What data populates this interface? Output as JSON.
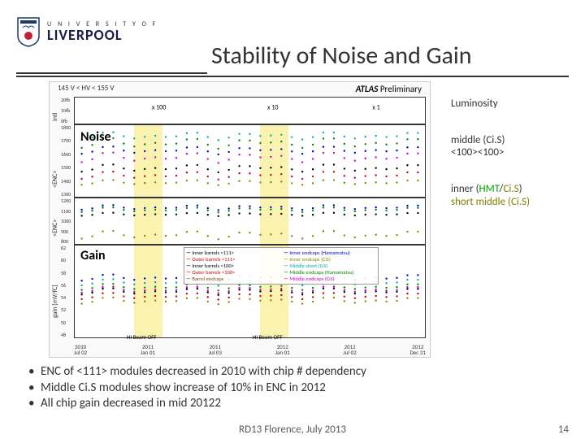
{
  "logo": {
    "univ": "U N I V E R S I T Y  O F",
    "name": "LIVERPOOL"
  },
  "title": "Stability of Noise and Gain",
  "chart": {
    "header": "145 V < HV < 155 V",
    "atlas": "ATLAS",
    "prelim": " Preliminary",
    "noise_label": "Noise",
    "gain_label": "Gain",
    "ylabel1": "intl",
    "ylabel2": "<ENC>",
    "ylabel3": "<ENC>",
    "ylabel4": "gain [mV/fC]",
    "mult_labels": [
      "x 100",
      "x 10",
      "x 1"
    ],
    "beam_off": "HI  Beam OFF",
    "beam_off2": "HI        Beam OFF",
    "panel1_yticks": [
      "20fb",
      "10fb",
      "0fb"
    ],
    "panel2_yticks": [
      "1800",
      "1700",
      "1600",
      "1500",
      "1400",
      "1300"
    ],
    "panel3_yticks": [
      "1200",
      "1100",
      "1000",
      "900",
      "800"
    ],
    "panel4_yticks": [
      "62",
      "60",
      "58",
      "56",
      "54",
      "52",
      "50",
      "48"
    ],
    "xaxis": [
      {
        "top": "2010",
        "bot": "Jul 02"
      },
      {
        "top": "2011",
        "bot": "Jan 01"
      },
      {
        "top": "2011",
        "bot": "Jul 03"
      },
      {
        "top": "2012",
        "bot": "Jan 01"
      },
      {
        "top": "2012",
        "bot": "Jul 02"
      },
      {
        "top": "2012",
        "bot": "Dec 31"
      }
    ],
    "legend": [
      "Inner barrels <111>",
      "Inner endcaps (Hamamatsu)",
      "Outer barrels <111>",
      "Inner endcaps (CiS)",
      "Inner barrels <100>",
      "Middle short (CiS)",
      "Outer barrels <100>",
      "Middle endcaps (Hamamatsu)",
      "Barrel endcaps",
      "Middle endcaps (CiS)"
    ],
    "highlight_bands": [
      {
        "left_pct": 17,
        "width_pct": 8
      },
      {
        "left_pct": 53,
        "width_pct": 8
      }
    ],
    "series_colors": {
      "black": "#000000",
      "red": "#cc0000",
      "blue": "#0000cc",
      "green": "#008800",
      "magenta": "#cc00cc",
      "cyan": "#00aaaa",
      "olive": "#888800",
      "darkred": "#880000"
    },
    "lumi": {
      "color": "#8b0000",
      "segments": [
        {
          "x1pct": 2,
          "y1pct": 90,
          "x2pct": 18,
          "y2pct": 85
        },
        {
          "x1pct": 28,
          "y1pct": 95,
          "x2pct": 55,
          "y2pct": 45
        },
        {
          "x1pct": 62,
          "y1pct": 95,
          "x2pct": 98,
          "y2pct": 10
        }
      ]
    },
    "panel2_series": [
      {
        "color": "#00aaaa",
        "baseY": 15,
        "wiggle": 3
      },
      {
        "color": "#008800",
        "baseY": 25,
        "wiggle": 4
      },
      {
        "color": "#0000cc",
        "baseY": 35,
        "wiggle": 3
      },
      {
        "color": "#cc00cc",
        "baseY": 45,
        "wiggle": 4
      },
      {
        "color": "#000000",
        "baseY": 60,
        "wiggle": 3
      },
      {
        "color": "#cc0000",
        "baseY": 70,
        "wiggle": 3
      },
      {
        "color": "#888800",
        "baseY": 80,
        "wiggle": 2
      }
    ],
    "panel3_series": [
      {
        "color": "#0000cc",
        "baseY": 20,
        "wiggle": 3
      },
      {
        "color": "#008800",
        "baseY": 25,
        "wiggle": 3
      },
      {
        "color": "#000000",
        "baseY": 35,
        "wiggle": 2
      },
      {
        "color": "#888800",
        "baseY": 80,
        "wiggle": 5
      }
    ],
    "panel4_series": [
      {
        "color": "#0000cc",
        "baseY": 35,
        "wiggle": 2
      },
      {
        "color": "#00aaaa",
        "baseY": 40,
        "wiggle": 2
      },
      {
        "color": "#008800",
        "baseY": 45,
        "wiggle": 2
      },
      {
        "color": "#cc00cc",
        "baseY": 48,
        "wiggle": 2
      },
      {
        "color": "#000000",
        "baseY": 50,
        "wiggle": 2
      },
      {
        "color": "#cc0000",
        "baseY": 55,
        "wiggle": 2
      },
      {
        "color": "#888800",
        "baseY": 60,
        "wiggle": 2
      }
    ]
  },
  "annotations": {
    "luminosity": "Luminosity",
    "middle1": "middle (Ci.S)",
    "middle2": "<100><100>",
    "inner_pre": "inner (",
    "inner_hmt": "HMT",
    "inner_sep": "/",
    "inner_cis": "Ci.S",
    "inner_post": ")",
    "short_mid": "short middle (Ci.S)"
  },
  "bullets": [
    "ENC of <111> modules decreased in 2010 with chip # dependency",
    "Middle Ci.S modules show increase of 10% in ENC in 2012",
    "All chip gain decreased in mid 20122"
  ],
  "footer": "RD13 Florence, July 2013",
  "page": "14"
}
